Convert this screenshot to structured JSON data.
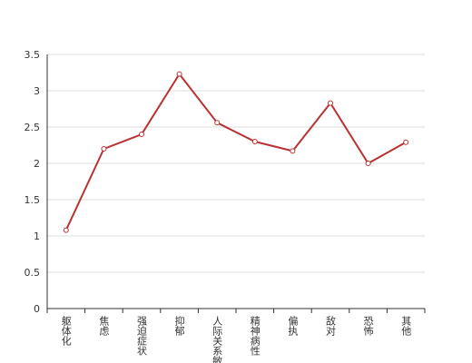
{
  "chart_data": {
    "type": "line",
    "categories": [
      "躯体化",
      "焦虑",
      "强迫症状",
      "抑郁",
      "人际关系敏感",
      "精神病性",
      "偏执",
      "敌对",
      "恐怖",
      "其他"
    ],
    "series": [
      {
        "color": "#b83232",
        "values": [
          1.08,
          2.2,
          2.4,
          3.23,
          2.56,
          2.3,
          2.17,
          2.83,
          2.0,
          2.29
        ]
      }
    ],
    "ylim": [
      0,
      3.5
    ],
    "yticks": [
      0,
      0.5,
      1,
      1.5,
      2,
      2.5,
      3,
      3.5
    ],
    "grid": true
  }
}
